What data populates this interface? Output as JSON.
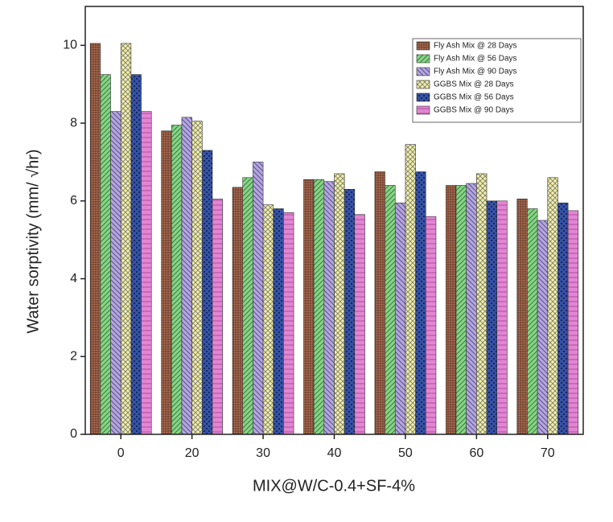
{
  "chart_data": {
    "type": "bar",
    "xlabel": "MIX@W/C-0.4+SF-4%",
    "ylabel": "Water sorptivity (mm/ √hr)",
    "categories": [
      "0",
      "20",
      "30",
      "40",
      "50",
      "60",
      "70"
    ],
    "series": [
      {
        "name": "Fly Ash Mix @ 28  Days",
        "color": "#b5765a",
        "values": [
          10.05,
          7.8,
          6.35,
          6.55,
          6.75,
          6.4,
          6.05
        ]
      },
      {
        "name": "Fly Ash Mix @ 56  Days",
        "color": "#86d486",
        "values": [
          9.25,
          7.95,
          6.6,
          6.55,
          6.4,
          6.4,
          5.8
        ]
      },
      {
        "name": "Fly Ash Mix @ 90  Days",
        "color": "#b4a6dc",
        "values": [
          8.3,
          8.15,
          7.0,
          6.5,
          5.95,
          6.45,
          5.5
        ]
      },
      {
        "name": "GGBS Mix @ 28  Days",
        "color": "#f2f0a2",
        "values": [
          10.05,
          8.05,
          5.9,
          6.7,
          7.45,
          6.7,
          6.6
        ]
      },
      {
        "name": "GGBS Mix @ 56  Days",
        "color": "#3652a4",
        "values": [
          9.25,
          7.3,
          5.8,
          6.3,
          6.75,
          6.0,
          5.95
        ]
      },
      {
        "name": "GGBS Mix @ 90 Days",
        "color": "#e286d4",
        "values": [
          8.3,
          6.05,
          5.7,
          5.65,
          5.6,
          6.0,
          5.75
        ]
      }
    ],
    "ylim": [
      0,
      11
    ],
    "yticks": [
      0,
      2,
      4,
      6,
      8,
      10
    ]
  }
}
